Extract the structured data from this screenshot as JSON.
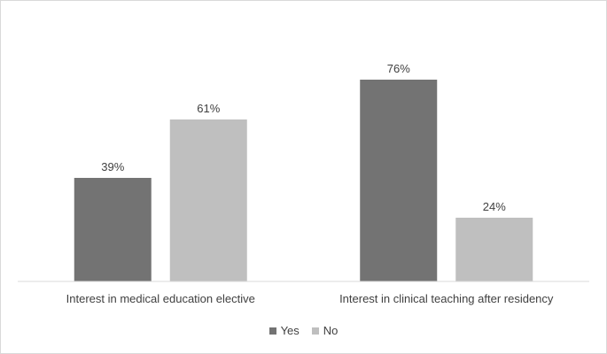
{
  "chart_data": {
    "type": "bar",
    "categories": [
      "Interest in medical education elective",
      "Interest in clinical teaching after residency"
    ],
    "series": [
      {
        "name": "Yes",
        "values": [
          39,
          76
        ],
        "color": "#737373",
        "labels": [
          "39%",
          "76%"
        ]
      },
      {
        "name": "No",
        "values": [
          61,
          24
        ],
        "color": "#bfbfbf",
        "labels": [
          "61%",
          "24%"
        ]
      }
    ],
    "ylim": [
      0,
      100
    ],
    "grid": false,
    "legend": "bottom-center"
  }
}
